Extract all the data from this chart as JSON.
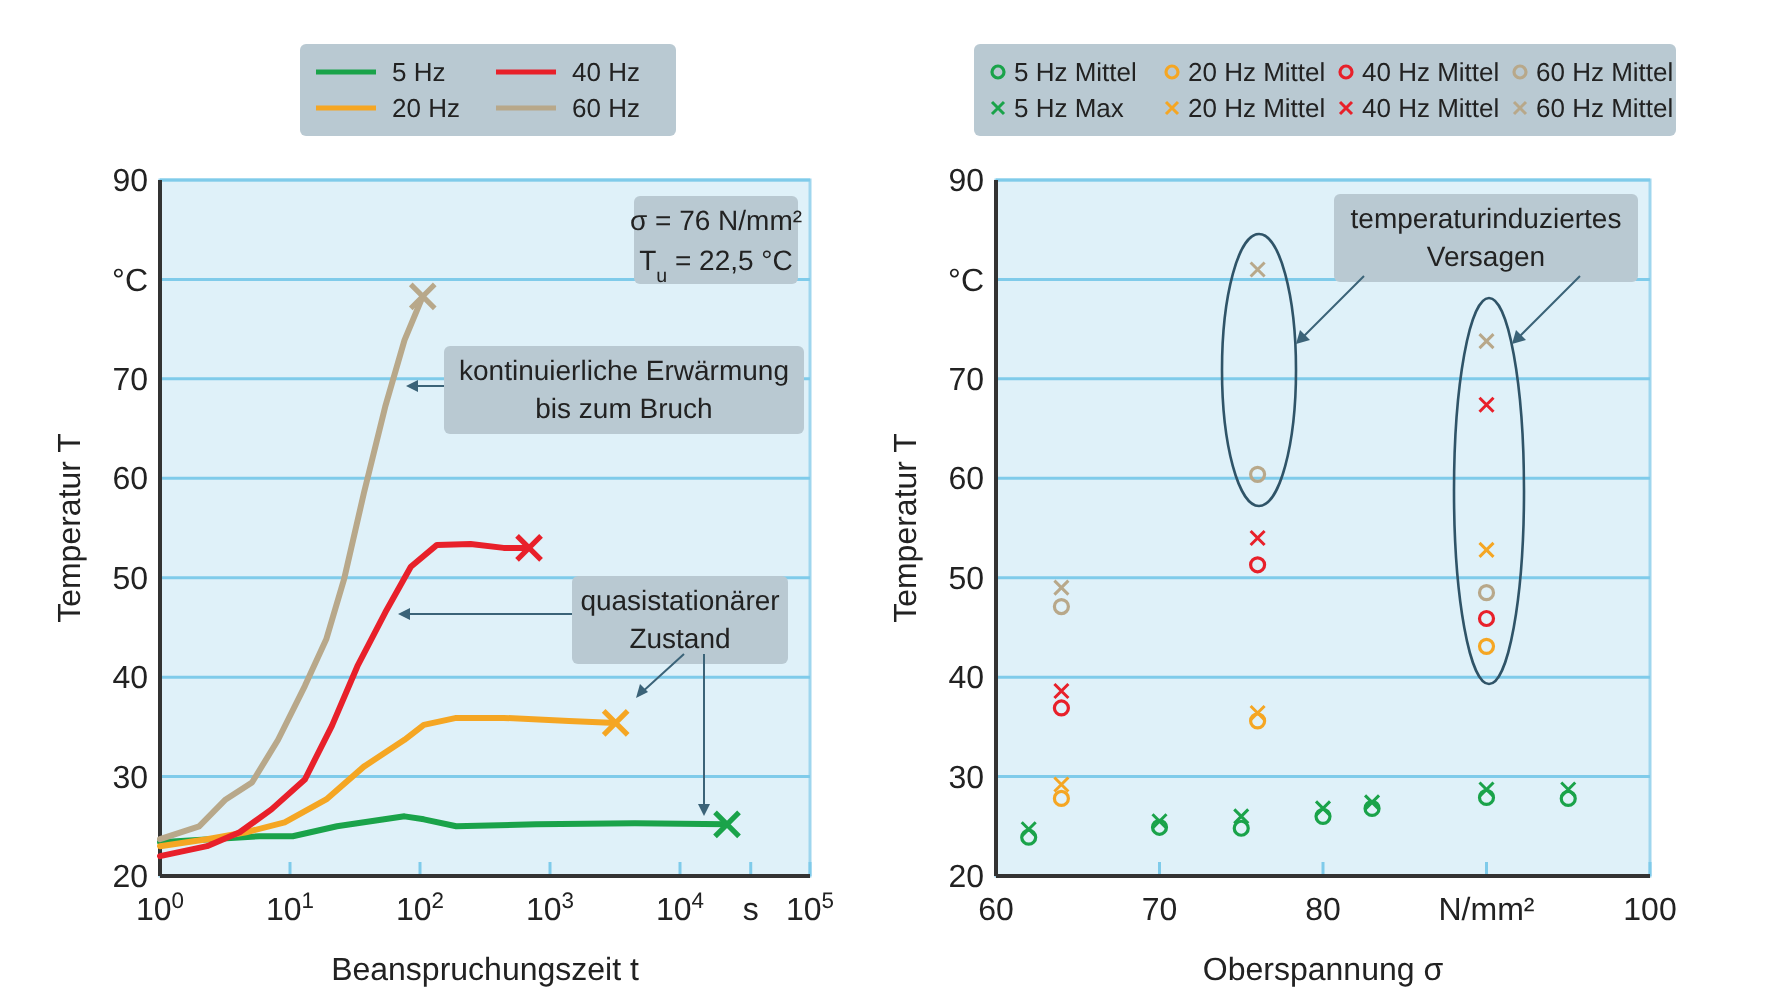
{
  "chart_data": [
    {
      "type": "line",
      "xlabel": "Beanspruchungszeit t",
      "ylabel": "Temperatur T",
      "log": "x",
      "grid": "y",
      "legend": "top",
      "xlim": [
        1,
        100000
      ],
      "ylim": [
        20,
        90
      ],
      "xticks": [
        {
          "value": 1,
          "label": "10$^{0}$"
        },
        {
          "value": 10,
          "label": "10$^{1}$"
        },
        {
          "value": 100,
          "label": "10$^{2}$"
        },
        {
          "value": 1000,
          "label": "10$^{3}$"
        },
        {
          "value": 10000,
          "label": "10$^{4}$"
        },
        {
          "value": 35000,
          "label": "s"
        },
        {
          "value": 100000,
          "label": "10$^{5}$"
        }
      ],
      "yticks": [
        20,
        30,
        40,
        50,
        60,
        70,
        {
          "value": 80,
          "label": "°C"
        },
        90
      ],
      "annotations": [
        "σ = 76 N/mm²",
        "T$_{u}$ = 22,5 °C",
        "kontinuierliche Erwärmung bis zum Bruch",
        "quasistationärer Zustand"
      ],
      "series": [
        {
          "name": "5 Hz",
          "type": "line",
          "color": "#1aa34a",
          "x": [
            1,
            5.8,
            10.5,
            23,
            76,
            107,
            190,
            780,
            4500,
            23000
          ],
          "values": [
            23.4,
            24,
            24,
            25,
            26,
            25.7,
            25,
            25.2,
            25.3,
            25.2
          ]
        },
        {
          "name": "20 Hz",
          "type": "line",
          "color": "#f5a623",
          "x": [
            1,
            2.3,
            4.6,
            9.1,
            19,
            37,
            76,
            107,
            190,
            440,
            1400,
            3200
          ],
          "values": [
            23,
            23.7,
            24.4,
            25.4,
            27.7,
            31,
            33.7,
            35.2,
            35.9,
            35.9,
            35.6,
            35.4
          ]
        },
        {
          "name": "40 Hz",
          "type": "line",
          "color": "#e8202a",
          "x": [
            1,
            2.3,
            4.1,
            7.2,
            13,
            21,
            33,
            54,
            85,
            135,
            245,
            440,
            690
          ],
          "values": [
            22,
            23,
            24.4,
            26.7,
            29.7,
            35.1,
            41.1,
            46.5,
            51.1,
            53.3,
            53.4,
            53,
            53
          ]
        },
        {
          "name": "60 Hz",
          "type": "line",
          "color": "#b8a88a",
          "x": [
            1,
            2,
            3.2,
            5.1,
            8.1,
            13,
            19,
            26,
            37,
            54,
            76,
            105
          ],
          "values": [
            23.7,
            25,
            27.7,
            29.4,
            33.7,
            39.1,
            43.8,
            49.8,
            58.5,
            67.2,
            73.9,
            78.3
          ]
        },
        {
          "type": "scatter",
          "marker": "cross",
          "color": "#1aa34a",
          "x": [
            23000
          ],
          "values": [
            25.2
          ]
        },
        {
          "type": "scatter",
          "marker": "cross",
          "color": "#f5a623",
          "x": [
            3200
          ],
          "values": [
            35.4
          ]
        },
        {
          "type": "scatter",
          "marker": "cross",
          "color": "#e8202a",
          "x": [
            690
          ],
          "values": [
            53
          ]
        },
        {
          "type": "scatter",
          "marker": "cross",
          "color": "#b8a88a",
          "x": [
            105
          ],
          "values": [
            78.3
          ]
        }
      ]
    },
    {
      "type": "scatter",
      "xlabel": "Oberspannung σ",
      "ylabel": "Temperatur T",
      "grid": "y",
      "legend": "top",
      "xlim": [
        60,
        100
      ],
      "ylim": [
        20,
        90
      ],
      "xticks": [
        60,
        70,
        80,
        {
          "value": 90,
          "label": "N/mm²"
        },
        100
      ],
      "yticks": [
        20,
        30,
        40,
        50,
        60,
        70,
        {
          "value": 80,
          "label": "°C"
        },
        90
      ],
      "annotations": [
        "temperaturinduziertes Versagen"
      ],
      "series": [
        {
          "name": "5 Hz Mittel",
          "marker": "circle",
          "color": "#1aa34a",
          "x": [
            62,
            70,
            75,
            80,
            83,
            90,
            95
          ],
          "values": [
            23.9,
            24.9,
            24.8,
            26,
            26.8,
            27.9,
            27.8
          ]
        },
        {
          "name": "5 Hz Max",
          "marker": "cross",
          "color": "#1aa34a",
          "x": [
            62,
            70,
            75,
            80,
            83,
            90,
            95
          ],
          "values": [
            24.7,
            25.5,
            26,
            26.8,
            27.4,
            28.7,
            28.7
          ]
        },
        {
          "name": "20 Hz Mittel",
          "marker": "circle",
          "color": "#f5a623",
          "x": [
            64,
            76,
            90
          ],
          "values": [
            27.8,
            35.6,
            43.1
          ]
        },
        {
          "name": "20 Hz Mittel",
          "marker": "cross",
          "color": "#f5a623",
          "x": [
            64,
            76,
            90
          ],
          "values": [
            29.2,
            36.4,
            52.8
          ]
        },
        {
          "name": "40 Hz Mittel",
          "marker": "circle",
          "color": "#e8202a",
          "x": [
            64,
            76,
            90
          ],
          "values": [
            36.9,
            51.3,
            45.9
          ]
        },
        {
          "name": "40 Hz Mittel",
          "marker": "cross",
          "color": "#e8202a",
          "x": [
            64,
            76,
            90
          ],
          "values": [
            38.6,
            54,
            67.4
          ]
        },
        {
          "name": "60 Hz Mittel",
          "marker": "circle",
          "color": "#b8a88a",
          "x": [
            64,
            76,
            90
          ],
          "values": [
            47.1,
            60.4,
            48.5
          ]
        },
        {
          "name": "60 Hz Mittel",
          "marker": "cross",
          "color": "#b8a88a",
          "x": [
            64,
            76,
            90
          ],
          "values": [
            49,
            81,
            73.8
          ]
        }
      ]
    }
  ]
}
